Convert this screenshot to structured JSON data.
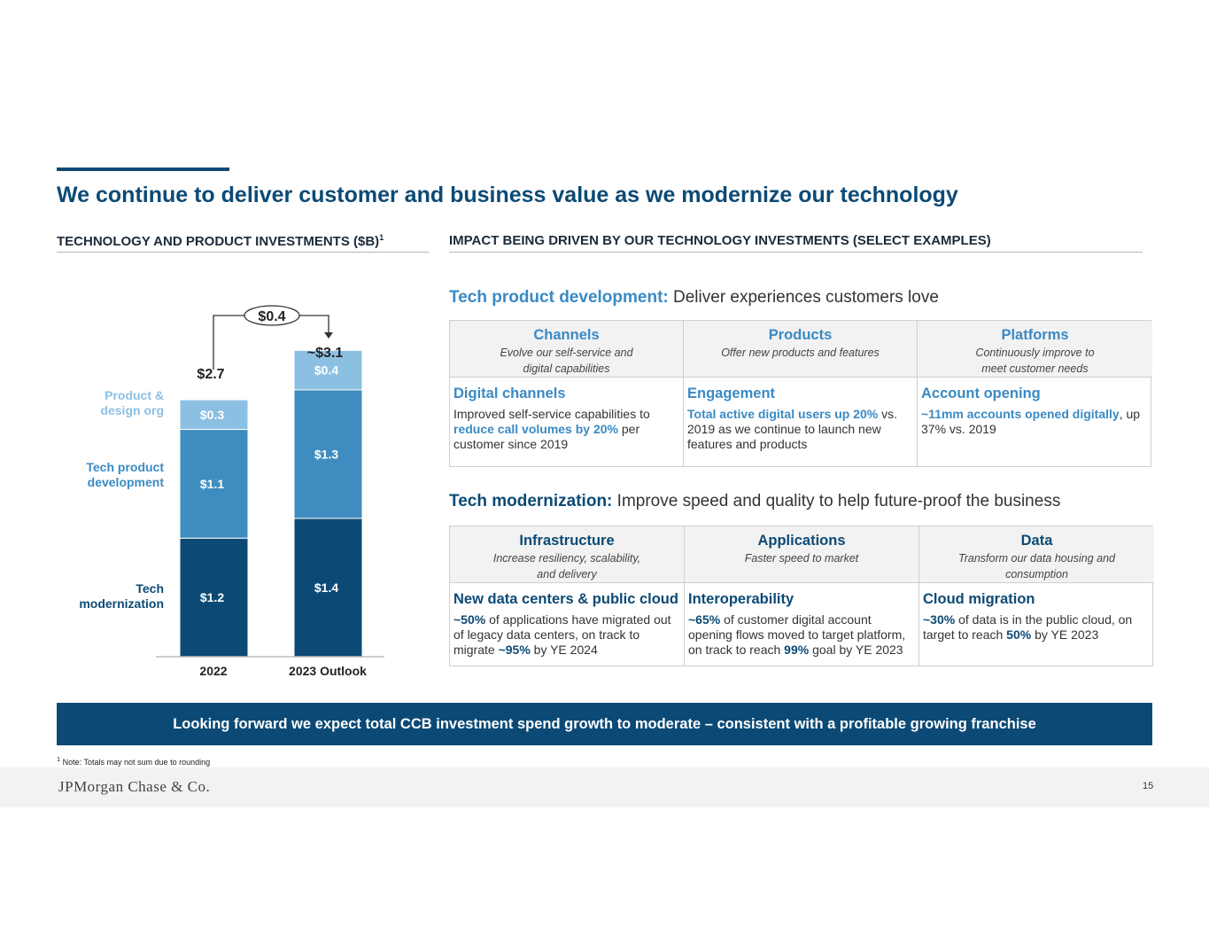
{
  "title": "We continue to deliver customer and business value as we modernize our technology",
  "left_section": {
    "heading": "TECHNOLOGY AND PRODUCT INVESTMENTS ($B)",
    "heading_sup": "1"
  },
  "right_section": {
    "heading": "IMPACT BEING DRIVEN BY OUR TECHNOLOGY INVESTMENTS (SELECT EXAMPLES)"
  },
  "colors": {
    "dark_navy": "#0c4a75",
    "mid_blue": "#3f8cc0",
    "light_blue": "#8cc0e3",
    "label_blue": "#3a8ac4"
  },
  "chart_data": {
    "type": "bar",
    "stacked": true,
    "categories": [
      "2022",
      "2023 Outlook"
    ],
    "series": [
      {
        "name": "Tech modernization",
        "values": [
          1.2,
          1.4
        ],
        "labels": [
          "$1.2",
          "$1.4"
        ],
        "color": "#0c4a75"
      },
      {
        "name": "Tech product development",
        "values": [
          1.1,
          1.3
        ],
        "labels": [
          "$1.1",
          "$1.3"
        ],
        "color": "#3f8cc0"
      },
      {
        "name": "Product & design org",
        "values": [
          0.3,
          0.4
        ],
        "labels": [
          "$0.3",
          "$0.4"
        ],
        "color": "#8cc0e3"
      }
    ],
    "totals": [
      "$2.7",
      "~$3.1"
    ],
    "change_label": "$0.4",
    "ylim": [
      0,
      3.1
    ]
  },
  "tech_product_dev": {
    "label": "Tech product development:",
    "tagline": "Deliver experiences customers love",
    "columns": [
      {
        "title": "Channels",
        "desc1": "Evolve our self-service and",
        "desc2": "digital capabilities",
        "item_title": "Digital channels",
        "t1": "Improved self-service capabilities to ",
        "h1": "reduce call volumes by 20%",
        "t2": " per customer since 2019"
      },
      {
        "title": "Products",
        "desc1": "Offer new products and features",
        "desc2": "",
        "item_title": "Engagement",
        "t1": "",
        "h1": "Total active digital users up 20%",
        "t2": " vs. 2019 as we continue to launch new features and products"
      },
      {
        "title": "Platforms",
        "desc1": "Continuously improve to",
        "desc2": "meet customer needs",
        "item_title": "Account opening",
        "t1": "",
        "h1": "~11mm accounts opened digitally",
        "t2": ", up 37% vs. 2019"
      }
    ]
  },
  "tech_modernization": {
    "label": "Tech modernization:",
    "tagline": "Improve speed and quality to help future-proof the business",
    "columns": [
      {
        "title": "Infrastructure",
        "desc1": "Increase resiliency, scalability,",
        "desc2": "and delivery",
        "item_title": "New data centers & public cloud",
        "h1": "~50%",
        "t1": " of applications have migrated out of legacy data centers, on track to migrate ",
        "h2": "~95%",
        "t2": " by YE 2024"
      },
      {
        "title": "Applications",
        "desc1": "Faster speed to market",
        "desc2": "",
        "item_title": "Interoperability",
        "h1": "~65%",
        "t1": " of customer digital account opening flows moved to target platform, on track to reach ",
        "h2": "99%",
        "t2": " goal by YE 2023"
      },
      {
        "title": "Data",
        "desc1": "Transform our data housing and",
        "desc2": "consumption",
        "item_title": "Cloud migration",
        "h1": "~30%",
        "t1": " of data is in the public cloud, on target to reach ",
        "h2": "50%",
        "t2": " by YE 2023"
      }
    ]
  },
  "banner": "Looking forward we expect total CCB investment spend growth to moderate – consistent with a profitable growing franchise",
  "footnote_sup": "1",
  "footnote": " Note: Totals may not sum due to rounding",
  "logo": "JPMorgan Chase & Co.",
  "page_number": "15"
}
